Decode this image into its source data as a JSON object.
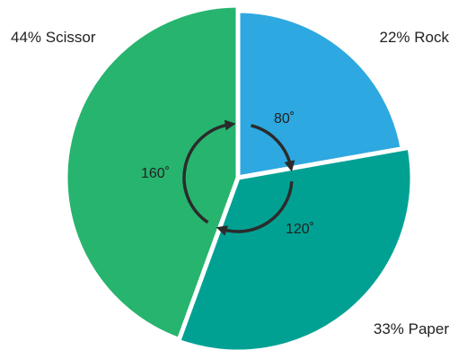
{
  "chart_data": {
    "type": "pie",
    "slices": [
      {
        "label": "44% Scissor",
        "percent": 44,
        "angle": 160,
        "angle_label": "160˚",
        "color": "#27b46e"
      },
      {
        "label": "22% Rock",
        "percent": 22,
        "angle": 80,
        "angle_label": "80˚",
        "color": "#2ea8e0"
      },
      {
        "label": "33% Paper",
        "percent": 33,
        "angle": 120,
        "angle_label": "120˚",
        "color": "#00a193"
      }
    ],
    "title": "",
    "legend": "none",
    "arrows": "clockwise",
    "separator_color": "#ffffff",
    "arrow_color": "#2b2b2b"
  }
}
